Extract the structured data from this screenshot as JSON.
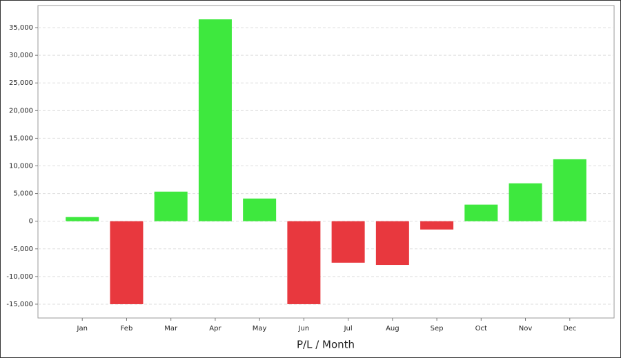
{
  "chart_data": {
    "type": "bar",
    "x_label": "P/L / Month",
    "categories": [
      "Jan",
      "Feb",
      "Mar",
      "Apr",
      "May",
      "Jun",
      "Jul",
      "Aug",
      "Sep",
      "Oct",
      "Nov",
      "Dec"
    ],
    "values": [
      750,
      -15000,
      5350,
      36500,
      4100,
      -15000,
      -7500,
      -7900,
      -1500,
      3000,
      6850,
      11200
    ],
    "positive_color": "#3ee83e",
    "negative_color": "#e8383e",
    "ylim": [
      -17500,
      39000
    ],
    "yticks": [
      {
        "value": -15000,
        "label": "-15,000"
      },
      {
        "value": -10000,
        "label": "-10,000"
      },
      {
        "value": -5000,
        "label": "-5,000"
      },
      0,
      {
        "value": 5000,
        "label": "5,000"
      },
      {
        "value": 10000,
        "label": "10,000"
      },
      {
        "value": 15000,
        "label": "15,000"
      },
      {
        "value": 20000,
        "label": "20,000"
      },
      {
        "value": 25000,
        "label": "25,000"
      },
      {
        "value": 30000,
        "label": "30,000"
      },
      {
        "value": 35000,
        "label": "35,000"
      }
    ],
    "grid": true
  }
}
